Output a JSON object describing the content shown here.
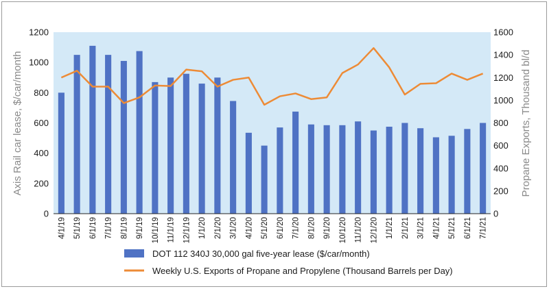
{
  "chart_data": {
    "type": "bar",
    "categories": [
      "4/1/19",
      "5/1/19",
      "6/1/19",
      "7/1/19",
      "8/1/19",
      "9/1/19",
      "10/1/19",
      "11/1/19",
      "12/1/19",
      "1/1/20",
      "2/1/20",
      "3/1/20",
      "4/1/20",
      "5/1/20",
      "6/1/20",
      "7/1/20",
      "8/1/20",
      "9/1/20",
      "10/1/20",
      "11/1/20",
      "12/1/20",
      "1/1/21",
      "2/1/21",
      "3/1/21",
      "4/1/21",
      "5/1/21",
      "6/1/21",
      "7/1/21"
    ],
    "series": [
      {
        "name": "DOT 112 340J 30,000 gal five-year lease ($/car/month)",
        "type": "bar",
        "axis": "left",
        "color": "#4f72c4",
        "values": [
          800,
          1050,
          1110,
          1050,
          1010,
          1075,
          870,
          900,
          925,
          860,
          900,
          745,
          535,
          450,
          570,
          675,
          590,
          585,
          585,
          610,
          550,
          575,
          600,
          565,
          505,
          515,
          560,
          600
        ]
      },
      {
        "name": "Weekly U.S. Exports of Propane and Propylene (Thousand Barrels per Day)",
        "type": "line",
        "axis": "right",
        "color": "#ed8b36",
        "values": [
          1200,
          1260,
          1120,
          1120,
          975,
          1025,
          1130,
          1125,
          1270,
          1255,
          1120,
          1180,
          1200,
          960,
          1035,
          1060,
          1010,
          1025,
          1240,
          1315,
          1460,
          1290,
          1050,
          1145,
          1150,
          1235,
          1180,
          1235
        ]
      }
    ],
    "ylabel": "Axis Rail car lease, $/car/month",
    "y2label": "Propane Exports, Thousand bl/d",
    "ylim": [
      0,
      1200
    ],
    "y2lim": [
      0,
      1600
    ],
    "yticks": [
      0,
      200,
      400,
      600,
      800,
      1000,
      1200
    ],
    "y2ticks": [
      0,
      200,
      400,
      600,
      800,
      1000,
      1200,
      1400,
      1600
    ],
    "grid": false,
    "legend_position": "bottom"
  }
}
